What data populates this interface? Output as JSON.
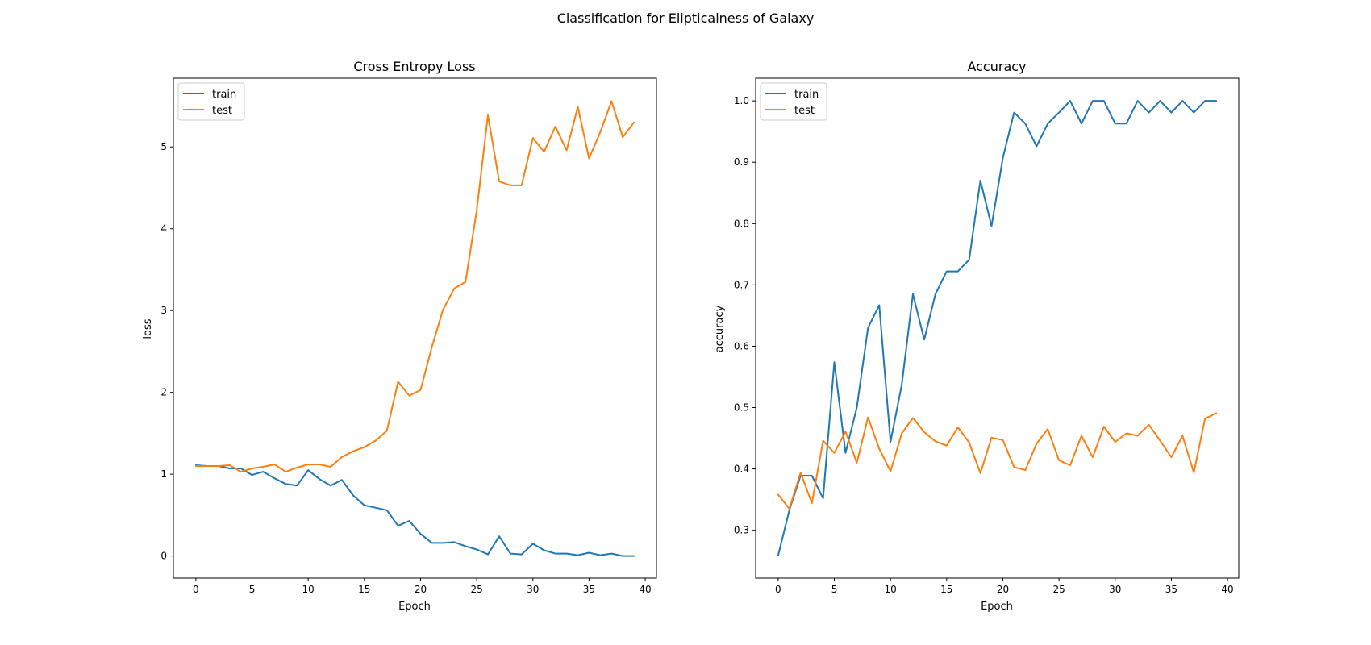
{
  "suptitle": "Classification for Elipticalness of Galaxy",
  "colors": {
    "train": "#1f77b4",
    "test": "#ff7f0e"
  },
  "chart_data": [
    {
      "type": "line",
      "title": "Cross Entropy Loss",
      "xlabel": "Epoch",
      "ylabel": "loss",
      "xlim": [
        -2,
        41
      ],
      "ylim": [
        -0.27,
        5.84
      ],
      "xticks": [
        0,
        5,
        10,
        15,
        20,
        25,
        30,
        35,
        40
      ],
      "yticks": [
        0,
        1,
        2,
        3,
        4,
        5
      ],
      "legend": "upper left",
      "x": [
        0,
        1,
        2,
        3,
        4,
        5,
        6,
        7,
        8,
        9,
        10,
        11,
        12,
        13,
        14,
        15,
        16,
        17,
        18,
        19,
        20,
        21,
        22,
        23,
        24,
        25,
        26,
        27,
        28,
        29,
        30,
        31,
        32,
        33,
        34,
        35,
        36,
        37,
        38,
        39
      ],
      "series": [
        {
          "name": "train",
          "values": [
            1.11,
            1.1,
            1.1,
            1.07,
            1.07,
            0.99,
            1.03,
            0.95,
            0.88,
            0.86,
            1.05,
            0.94,
            0.86,
            0.93,
            0.74,
            0.62,
            0.59,
            0.56,
            0.37,
            0.43,
            0.27,
            0.16,
            0.16,
            0.17,
            0.12,
            0.08,
            0.02,
            0.24,
            0.03,
            0.02,
            0.15,
            0.07,
            0.03,
            0.03,
            0.01,
            0.04,
            0.01,
            0.03,
            0.0,
            0.0
          ]
        },
        {
          "name": "test",
          "values": [
            1.1,
            1.1,
            1.1,
            1.11,
            1.03,
            1.07,
            1.09,
            1.12,
            1.03,
            1.08,
            1.12,
            1.12,
            1.09,
            1.21,
            1.28,
            1.33,
            1.41,
            1.53,
            2.13,
            1.96,
            2.03,
            2.55,
            3.01,
            3.27,
            3.35,
            4.22,
            5.39,
            4.58,
            4.53,
            4.53,
            5.11,
            4.94,
            5.25,
            4.96,
            5.49,
            4.86,
            5.18,
            5.56,
            5.12,
            5.3
          ]
        }
      ]
    },
    {
      "type": "line",
      "title": "Accuracy",
      "xlabel": "Epoch",
      "ylabel": "accuracy",
      "xlim": [
        -2,
        41
      ],
      "ylim": [
        0.222,
        1.037
      ],
      "xticks": [
        0,
        5,
        10,
        15,
        20,
        25,
        30,
        35,
        40
      ],
      "yticks": [
        0.3,
        0.4,
        0.5,
        0.6,
        0.7,
        0.8,
        0.9,
        1.0
      ],
      "legend": "upper left",
      "x": [
        0,
        1,
        2,
        3,
        4,
        5,
        6,
        7,
        8,
        9,
        10,
        11,
        12,
        13,
        14,
        15,
        16,
        17,
        18,
        19,
        20,
        21,
        22,
        23,
        24,
        25,
        26,
        27,
        28,
        29,
        30,
        31,
        32,
        33,
        34,
        35,
        36,
        37,
        38,
        39
      ],
      "series": [
        {
          "name": "train",
          "values": [
            0.259,
            0.333,
            0.389,
            0.389,
            0.352,
            0.574,
            0.426,
            0.5,
            0.63,
            0.667,
            0.444,
            0.537,
            0.685,
            0.611,
            0.685,
            0.722,
            0.722,
            0.741,
            0.87,
            0.796,
            0.907,
            0.981,
            0.963,
            0.926,
            0.963,
            0.981,
            1.0,
            0.963,
            1.0,
            1.0,
            0.963,
            0.963,
            1.0,
            0.981,
            1.0,
            0.981,
            1.0,
            0.981,
            1.0,
            1.0
          ]
        },
        {
          "name": "test",
          "values": [
            0.358,
            0.335,
            0.394,
            0.344,
            0.446,
            0.426,
            0.461,
            0.41,
            0.484,
            0.433,
            0.396,
            0.458,
            0.483,
            0.46,
            0.445,
            0.438,
            0.468,
            0.443,
            0.393,
            0.451,
            0.447,
            0.403,
            0.398,
            0.441,
            0.465,
            0.414,
            0.406,
            0.454,
            0.419,
            0.469,
            0.444,
            0.458,
            0.454,
            0.472,
            0.446,
            0.419,
            0.454,
            0.394,
            0.482,
            0.491
          ]
        }
      ]
    }
  ]
}
